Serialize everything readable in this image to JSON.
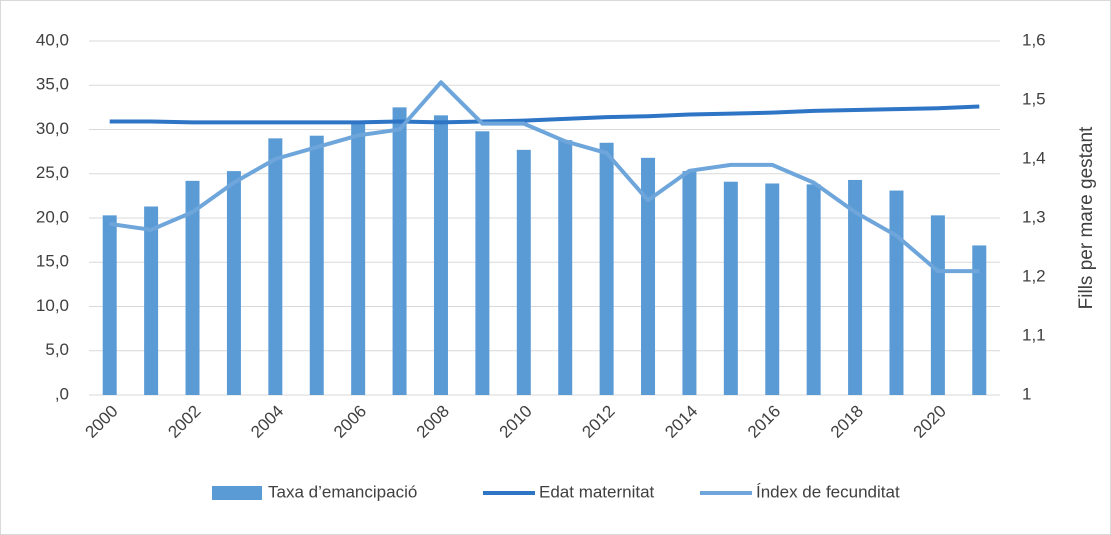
{
  "chart_data": {
    "type": "bar",
    "categories": [
      "2000",
      null,
      "2002",
      null,
      "2004",
      null,
      "2006",
      null,
      "2008",
      null,
      "2010",
      null,
      "2012",
      null,
      "2014",
      null,
      "2016",
      null,
      "2018",
      null,
      "2020",
      null
    ],
    "series": [
      {
        "name": "Taxa d’emancipació",
        "type": "bar",
        "color": "#5b9bd5",
        "axis": "y",
        "values": [
          20.3,
          21.3,
          24.2,
          25.3,
          29.0,
          29.3,
          30.8,
          32.5,
          31.6,
          29.8,
          27.7,
          28.8,
          28.5,
          26.8,
          25.3,
          24.1,
          23.9,
          23.8,
          24.3,
          23.1,
          20.3,
          16.9
        ]
      },
      {
        "name": "Edat maternitat",
        "type": "line",
        "color": "#2e75c6",
        "axis": "y",
        "values": [
          30.9,
          30.9,
          30.8,
          30.8,
          30.8,
          30.8,
          30.8,
          30.9,
          30.8,
          30.9,
          31.0,
          31.2,
          31.4,
          31.5,
          31.7,
          31.8,
          31.9,
          32.1,
          32.2,
          32.3,
          32.4,
          32.6
        ]
      },
      {
        "name": "Índex de fecunditat",
        "type": "line",
        "color": "#6ea6db",
        "axis": "y2",
        "values": [
          1.29,
          1.28,
          1.31,
          1.36,
          1.4,
          1.42,
          1.44,
          1.45,
          1.53,
          1.46,
          1.46,
          1.43,
          1.41,
          1.33,
          1.38,
          1.39,
          1.39,
          1.36,
          1.31,
          1.27,
          1.21,
          1.21
        ]
      }
    ],
    "ylim": [
      0,
      40
    ],
    "yticks": [
      {
        "value": 0,
        "label": ",0"
      },
      {
        "value": 5,
        "label": "5,0"
      },
      {
        "value": 10,
        "label": "10,0"
      },
      {
        "value": 15,
        "label": "15,0"
      },
      {
        "value": 20,
        "label": "20,0"
      },
      {
        "value": 25,
        "label": "25,0"
      },
      {
        "value": 30,
        "label": "30,0"
      },
      {
        "value": 35,
        "label": "35,0"
      },
      {
        "value": 40,
        "label": "40,0"
      }
    ],
    "y2lim": [
      1,
      1.6
    ],
    "y2ticks": [
      1,
      {
        "value": 1.1,
        "label": "1,1"
      },
      {
        "value": 1.2,
        "label": "1,2"
      },
      {
        "value": 1.3,
        "label": "1,3"
      },
      {
        "value": 1.4,
        "label": "1,4"
      },
      {
        "value": 1.5,
        "label": "1,5"
      },
      {
        "value": 1.6,
        "label": "1,6"
      }
    ],
    "y2label": "Fills per mare gestant",
    "grid": true,
    "legend": "bottom"
  }
}
